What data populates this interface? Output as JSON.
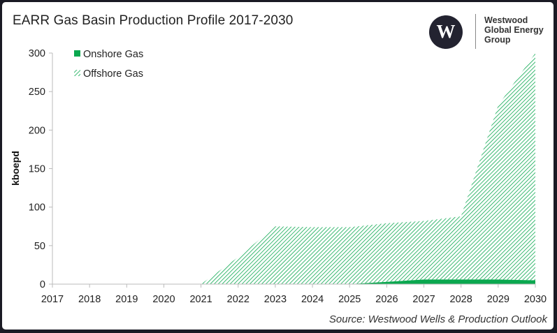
{
  "header": {
    "title": "EARR Gas Basin Production Profile 2017-2030",
    "logo_lines": [
      "Westwood",
      "Global Energy",
      "Group"
    ]
  },
  "source": "Source: Westwood Wells & Production Outlook",
  "colors": {
    "onshore": "#0aa84f",
    "offshore": "#0aa84f",
    "frame": "#1a1a24"
  },
  "chart_data": {
    "type": "area",
    "stacked": true,
    "x": [
      "2017",
      "2018",
      "2019",
      "2020",
      "2021",
      "2022",
      "2023",
      "2024",
      "2025",
      "2026",
      "2027",
      "2028",
      "2029",
      "2030"
    ],
    "series": [
      {
        "name": "Onshore Gas",
        "style": "solid",
        "values": [
          0,
          0,
          0,
          0,
          0,
          0,
          0,
          0,
          0,
          3,
          6,
          6,
          6,
          5
        ]
      },
      {
        "name": "Offshore Gas",
        "style": "hatched",
        "values": [
          0,
          0,
          0,
          0,
          0,
          35,
          75,
          74,
          74,
          76,
          76,
          82,
          226,
          295
        ]
      }
    ],
    "ylabel": "kboepd",
    "xlabel": "",
    "ylim": [
      0,
      300
    ],
    "yticks": [
      0,
      50,
      100,
      150,
      200,
      250,
      300
    ],
    "legend_position": "top-left",
    "grid": false
  }
}
